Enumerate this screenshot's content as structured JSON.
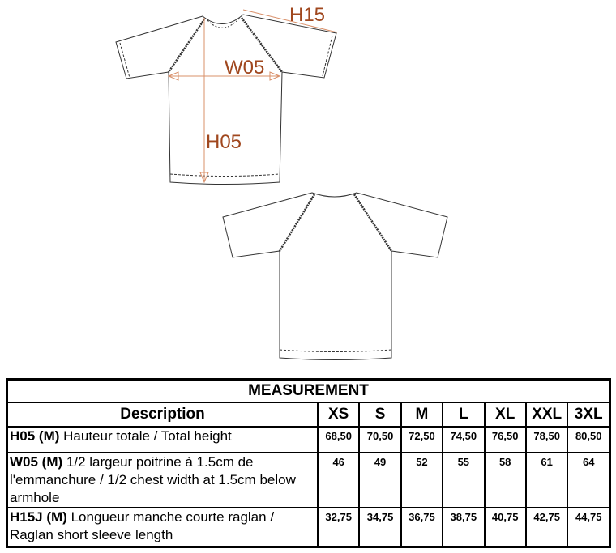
{
  "diagram_labels": {
    "h15": "H15",
    "w05": "W05",
    "h05": "H05"
  },
  "colors": {
    "annotation": "#a0471e",
    "arrow": "#d9906a"
  },
  "table": {
    "title": "MEASUREMENT",
    "description_header": "Description",
    "sizes": [
      "XS",
      "S",
      "M",
      "L",
      "XL",
      "XXL",
      "3XL"
    ],
    "rows": [
      {
        "code": "H05 (M)",
        "text": "Hauteur totale / Total height",
        "values": [
          "68,50",
          "70,50",
          "72,50",
          "74,50",
          "76,50",
          "78,50",
          "80,50"
        ]
      },
      {
        "code": "W05 (M)",
        "text": "1/2 largeur poitrine à 1.5cm de l'emmanchure / 1/2 chest width at 1.5cm below armhole",
        "values": [
          "46",
          "49",
          "52",
          "55",
          "58",
          "61",
          "64"
        ]
      },
      {
        "code": "H15J (M)",
        "text": "Longueur manche courte raglan / Raglan short sleeve length",
        "values": [
          "32,75",
          "34,75",
          "36,75",
          "38,75",
          "40,75",
          "42,75",
          "44,75"
        ]
      }
    ]
  }
}
